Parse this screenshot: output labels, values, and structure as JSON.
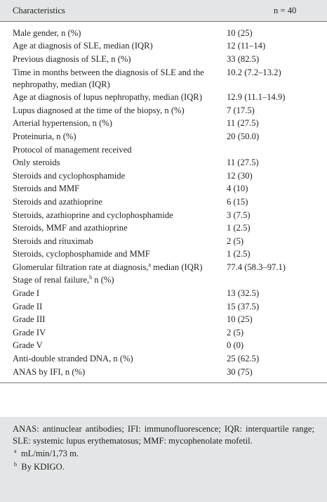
{
  "header": {
    "characteristics": "Characteristics",
    "n": "n = 40"
  },
  "table": {
    "rows": [
      {
        "label": "Male gender, n (%)",
        "value": "10 (25)"
      },
      {
        "label": "Age at diagnosis of SLE, median (IQR)",
        "value": "12 (11–14)"
      },
      {
        "label": "Previous diagnosis of SLE, n (%)",
        "value": "33 (82.5)"
      },
      {
        "label": "Time in months between the diagnosis of SLE and the nephropathy, median (IQR)",
        "value": "10.2 (7.2–13.2)"
      },
      {
        "label": "Age at diagnosis of lupus nephropathy, median (IQR)",
        "value": "12.9 (11.1–14.9)"
      },
      {
        "label": "Lupus diagnosed at the time of the biopsy, n (%)",
        "value": "7 (17.5)"
      },
      {
        "label": "Arterial hypertension, n (%)",
        "value": "11 (27.5)"
      },
      {
        "label": "Proteinuria, n (%)",
        "value": "20 (50.0)"
      },
      {
        "label": "Protocol of management received"
      },
      {
        "label": "Only steroids",
        "value": "11 (27.5)"
      },
      {
        "label": "Steroids and cyclophosphamide",
        "value": "12 (30)"
      },
      {
        "label": "Steroids and MMF",
        "value": "4 (10)"
      },
      {
        "label": "Steroids and azathioprine",
        "value": "6 (15)"
      },
      {
        "label": "Steroids, azathioprine and cyclophosphamide",
        "value": "3 (7.5)"
      },
      {
        "label": "Steroids, MMF and azathioprine",
        "value": "1 (2.5)"
      },
      {
        "label": "Steroids and rituximab",
        "value": "2 (5)"
      },
      {
        "label": "Steroids, cyclophosphamide and MMF",
        "value": "1 (2.5)"
      },
      {
        "label": "Glomerular filtration rate at diagnosis,",
        "sup": "a",
        "label_rest": " median (IQR)",
        "value": "77.4 (58.3–97.1)"
      },
      {
        "label": "Stage of renal failure,",
        "sup": "b",
        "label_rest": " n (%)"
      },
      {
        "label": "Grade I",
        "value": "13 (32.5)"
      },
      {
        "label": "Grade II",
        "value": "15 (37.5)"
      },
      {
        "label": "Grade III",
        "value": "10 (25)"
      },
      {
        "label": "Grade IV",
        "value": "2 (5)"
      },
      {
        "label": "Grade V",
        "value": "0 (0)"
      },
      {
        "label": "Anti-double stranded DNA, n (%)",
        "value": "25 (62.5)"
      },
      {
        "label": "ANAS by IFI, n (%)",
        "value": "30 (75)"
      }
    ]
  },
  "footer": {
    "abbreviations": "ANAS: antinuclear antibodies; IFI: immunofluorescence; IQR: interquartile range; SLE: systemic lupus erythematosus; MMF: mycophenolate mofetil.",
    "notes": [
      {
        "mark": "a",
        "text": "mL/min/1,73 m."
      },
      {
        "mark": "b",
        "text": "By KDIGO."
      }
    ]
  }
}
